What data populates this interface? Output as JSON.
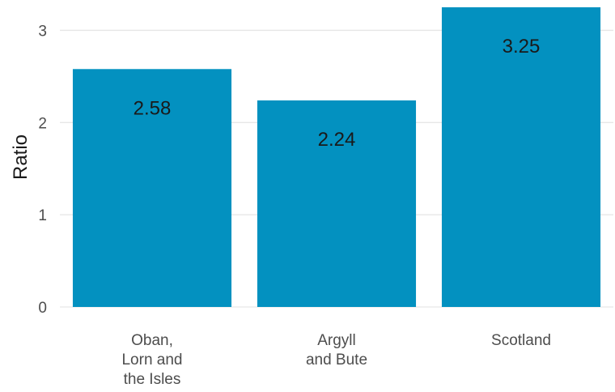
{
  "chart_data": {
    "type": "bar",
    "categories": [
      "Oban,\nLorn and\nthe Isles",
      "Argyll\nand Bute",
      "Scotland"
    ],
    "values": [
      2.58,
      2.24,
      3.25
    ],
    "data_labels": [
      "2.58",
      "2.24",
      "3.25"
    ],
    "title": "",
    "xlabel": "",
    "ylabel": "Ratio",
    "ylim": [
      0,
      3.25
    ],
    "yticks": [
      0,
      1,
      2,
      3
    ],
    "grid": true,
    "legend": "none",
    "colors": {
      "bar": "#0391c0",
      "grid": "#e6e6e6",
      "tick_text": "#4d4d4d",
      "label_text": "#1a1a1a"
    }
  }
}
